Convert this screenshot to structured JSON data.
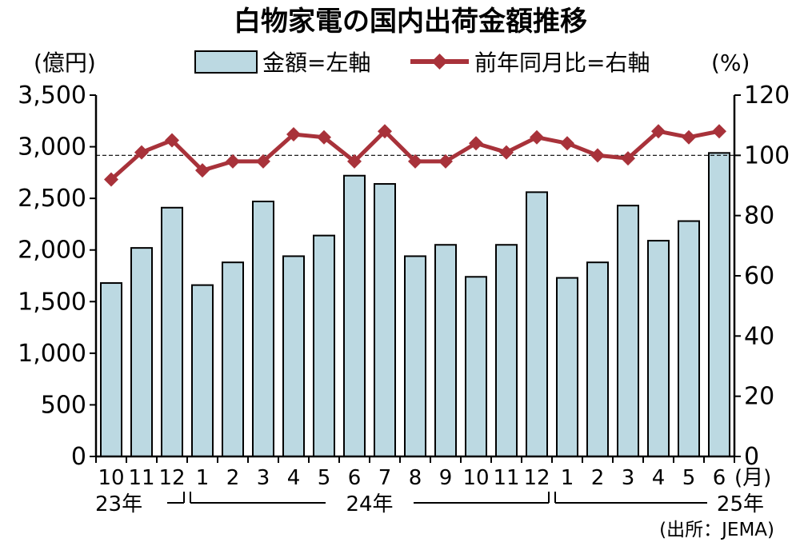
{
  "chart_data": {
    "type": "bar",
    "title": "白物家電の国内出荷金額推移",
    "left_unit": "(億円)",
    "right_unit": "(%)",
    "x_unit": "(月)",
    "source": "(出所：JEMA)",
    "categories": [
      "10",
      "11",
      "12",
      "1",
      "2",
      "3",
      "4",
      "5",
      "6",
      "7",
      "8",
      "9",
      "10",
      "11",
      "12",
      "1",
      "2",
      "3",
      "4",
      "5",
      "6"
    ],
    "year_labels": [
      {
        "label": "23年",
        "from": 0,
        "to": 2
      },
      {
        "label": "24年",
        "from": 3,
        "to": 14
      },
      {
        "label": "25年",
        "from": 15,
        "to": 20
      }
    ],
    "ylim": [
      0,
      3500
    ],
    "yticks": [
      "0",
      "500",
      "1,000",
      "1,500",
      "2,000",
      "2,500",
      "3,000",
      "3,500"
    ],
    "y2lim": [
      0,
      120
    ],
    "y2ticks": [
      "0",
      "20",
      "40",
      "60",
      "80",
      "100",
      "120"
    ],
    "reference_line_y2": 100,
    "series": [
      {
        "name": "金額=左軸",
        "type": "bar",
        "axis": "left",
        "color": "#bcd9e2",
        "values": [
          1680,
          2020,
          2410,
          1660,
          1880,
          2470,
          1940,
          2140,
          2720,
          2640,
          1940,
          2050,
          1740,
          2050,
          2560,
          1730,
          1880,
          2430,
          2090,
          2280,
          2940
        ]
      },
      {
        "name": "前年同月比=右軸",
        "type": "line",
        "axis": "right",
        "color": "#a8323a",
        "values": [
          92,
          101,
          105,
          95,
          98,
          98,
          107,
          106,
          98,
          108,
          98,
          98,
          104,
          101,
          106,
          104,
          100,
          99,
          108,
          106,
          108
        ]
      }
    ],
    "legend": "top"
  }
}
